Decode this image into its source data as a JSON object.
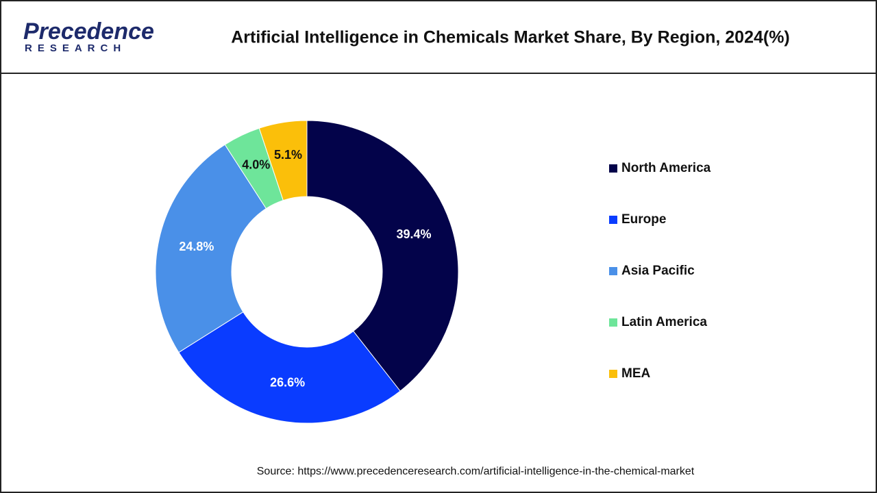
{
  "logo": {
    "name": "Precedence",
    "tagline": "RESEARCH"
  },
  "chart_data": {
    "type": "donut",
    "title": "Artificial Intelligence in Chemicals Market Share, By Region, 2024(%)",
    "categories": [
      "North America",
      "Europe",
      "Asia Pacific",
      "Latin America",
      "MEA"
    ],
    "values": [
      39.4,
      26.6,
      24.8,
      4.0,
      5.1
    ],
    "value_labels": [
      "39.4%",
      "26.6%",
      "24.8%",
      "4.0%",
      "5.1%"
    ],
    "colors": [
      "#03034a",
      "#0a3cff",
      "#4a90e8",
      "#6ee59a",
      "#fbbf0a"
    ],
    "legend": "right"
  },
  "source": "Source: https://www.precedenceresearch.com/artificial-intelligence-in-the-chemical-market"
}
